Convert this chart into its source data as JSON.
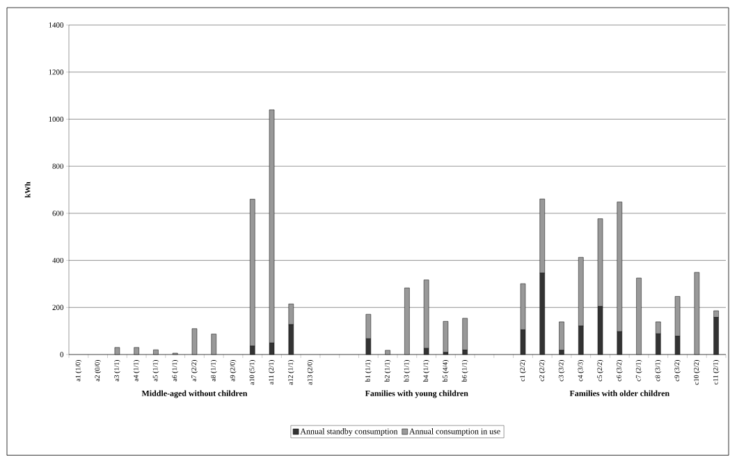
{
  "chart_data": {
    "type": "bar",
    "stacked": true,
    "ylabel": "kWh",
    "categories": [
      "a1 (1/0)",
      "a2 (0/0)",
      "a3 (1/1)",
      "a4 (1/1)",
      "a5 (1/1)",
      "a6 (1/1)",
      "a7 (2/2)",
      "a8 (1/1)",
      "a9 (2/0)",
      "a10 (5/1)",
      "a11 (2/1)",
      "a12 (1/1)",
      "a13 (2/0)",
      null,
      null,
      "b1 (1/1)",
      "b2 (1/1)",
      "b3 (1/1)",
      "b4 (1/1)",
      "b5 (4/4)",
      "b6 (1/1)",
      null,
      null,
      "c1 (2/2)",
      "c2 (2/2)",
      "c3 (3/2)",
      "c4 (3/3)",
      "c5 (2/2)",
      "c6 (3/2)",
      "c7 (2/1)",
      "c8 (3/1)",
      "c9 (3/2)",
      "c10 (2/2)",
      "c11 (2/1)"
    ],
    "series": [
      {
        "name": "Annual standby consumption",
        "color": "#333333",
        "values": [
          0,
          0,
          0,
          0,
          0,
          0,
          0,
          0,
          0,
          36,
          49,
          127,
          0,
          null,
          null,
          67,
          0,
          0,
          26,
          9,
          19,
          null,
          null,
          105,
          346,
          18,
          121,
          204,
          97,
          0,
          88,
          78,
          0,
          158
        ]
      },
      {
        "name": "Annual consumption in use",
        "color": "#999999",
        "values": [
          0,
          0,
          30,
          30,
          20,
          6,
          110,
          87,
          0,
          624,
          991,
          88,
          0,
          null,
          null,
          104,
          18,
          283,
          291,
          132,
          135,
          null,
          null,
          196,
          315,
          121,
          292,
          373,
          551,
          325,
          51,
          169,
          349,
          28
        ]
      }
    ],
    "ylim": [
      0,
      1400
    ],
    "yticks": [
      0,
      200,
      400,
      600,
      800,
      1000,
      1200,
      1400
    ],
    "grid": "y",
    "legend": "bottom",
    "annotations": [
      "Middle-aged without children",
      "Families with young children",
      "Families with older children"
    ]
  }
}
